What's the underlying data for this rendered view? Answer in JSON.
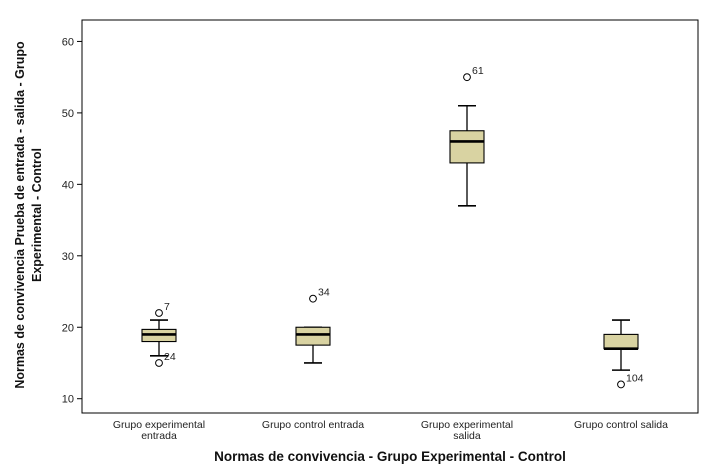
{
  "chart_data": {
    "type": "boxplot",
    "title": "",
    "xlabel": "Normas de convivencia - Grupo Experimental - Control",
    "ylabel_lines": [
      "Normas de convivencia Prueba de entrada - salida - Grupo",
      "Experimental - Control"
    ],
    "ylim": [
      8,
      63
    ],
    "yticks": [
      10,
      20,
      30,
      40,
      50,
      60
    ],
    "grid": false,
    "colors": {
      "box_fill": "#d9d3a2",
      "stroke": "#000000",
      "background": "#ffffff"
    },
    "categories": [
      {
        "label_lines": [
          "Grupo experimental",
          "entrada"
        ],
        "whisker_low": 16,
        "q1": 18,
        "median": 19,
        "q3": 19.7,
        "whisker_high": 21,
        "outliers": [
          {
            "value": 22,
            "label": "7"
          },
          {
            "value": 15,
            "label": "24"
          }
        ]
      },
      {
        "label_lines": [
          "Grupo control entrada"
        ],
        "whisker_low": 15,
        "q1": 17.5,
        "median": 19,
        "q3": 20,
        "whisker_high": 20,
        "outliers": [
          {
            "value": 24,
            "label": "34"
          }
        ]
      },
      {
        "label_lines": [
          "Grupo experimental",
          "salida"
        ],
        "whisker_low": 37,
        "q1": 43,
        "median": 46,
        "q3": 47.5,
        "whisker_high": 51,
        "outliers": [
          {
            "value": 55,
            "label": "61"
          }
        ]
      },
      {
        "label_lines": [
          "Grupo control salida"
        ],
        "whisker_low": 14,
        "q1": 17,
        "median": 17,
        "q3": 19,
        "whisker_high": 21,
        "outliers": [
          {
            "value": 12,
            "label": "104"
          }
        ]
      }
    ]
  }
}
